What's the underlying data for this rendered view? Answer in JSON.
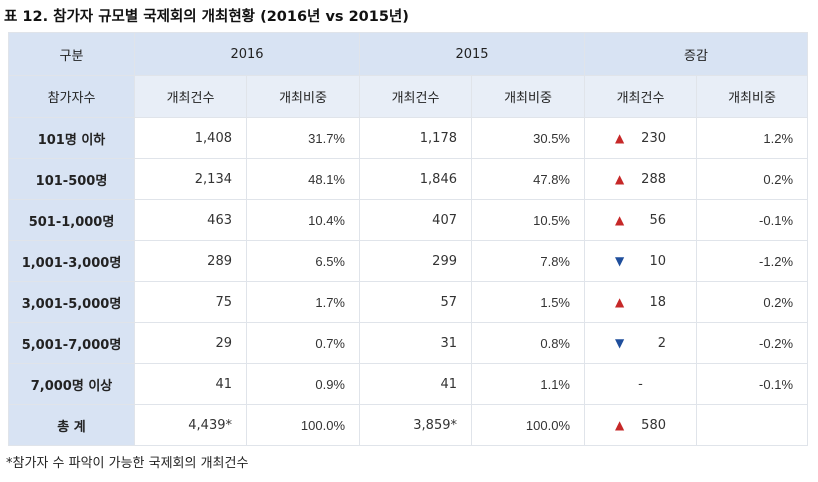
{
  "title": "표 12. 참가자 규모별 국제회의 개최현황 (2016년 vs 2015년)",
  "header": {
    "col_group_label": "구분",
    "groups": [
      "2016",
      "2015",
      "증감"
    ],
    "row_label": "참가자수",
    "sub": [
      "개최건수",
      "개최비중",
      "개최건수",
      "개최비중",
      "개최건수",
      "개최비중"
    ]
  },
  "rows": [
    {
      "label": "101명 이하",
      "c2016": "1,408",
      "p2016": "31.7%",
      "c2015": "1,178",
      "p2015": "30.5%",
      "dir": "up",
      "arrow": "▲",
      "chg": "230",
      "pchg": "1.2%"
    },
    {
      "label": "101-500명",
      "c2016": "2,134",
      "p2016": "48.1%",
      "c2015": "1,846",
      "p2015": "47.8%",
      "dir": "up",
      "arrow": "▲",
      "chg": "288",
      "pchg": "0.2%"
    },
    {
      "label": "501-1,000명",
      "c2016": "463",
      "p2016": "10.4%",
      "c2015": "407",
      "p2015": "10.5%",
      "dir": "up",
      "arrow": "▲",
      "chg": "56",
      "pchg": "-0.1%"
    },
    {
      "label": "1,001-3,000명",
      "c2016": "289",
      "p2016": "6.5%",
      "c2015": "299",
      "p2015": "7.8%",
      "dir": "down",
      "arrow": "▼",
      "chg": "10",
      "pchg": "-1.2%"
    },
    {
      "label": "3,001-5,000명",
      "c2016": "75",
      "p2016": "1.7%",
      "c2015": "57",
      "p2015": "1.5%",
      "dir": "up",
      "arrow": "▲",
      "chg": "18",
      "pchg": "0.2%"
    },
    {
      "label": "5,001-7,000명",
      "c2016": "29",
      "p2016": "0.7%",
      "c2015": "31",
      "p2015": "0.8%",
      "dir": "down",
      "arrow": "▼",
      "chg": "2",
      "pchg": "-0.2%"
    },
    {
      "label": "7,000명 이상",
      "c2016": "41",
      "p2016": "0.9%",
      "c2015": "41",
      "p2015": "1.1%",
      "dir": "none",
      "arrow": "",
      "chg": "-",
      "pchg": "-0.1%"
    }
  ],
  "total": {
    "label": "총 계",
    "c2016": "4,439*",
    "p2016": "100.0%",
    "c2015": "3,859*",
    "p2015": "100.0%",
    "dir": "up",
    "arrow": "▲",
    "chg": "580",
    "pchg": ""
  },
  "footnote": "*참가자 수 파악이 가능한 국제회의 개최건수",
  "colors": {
    "header_bg": "#d8e3f3",
    "subheader_bg": "#e8eef7",
    "up": "#c62828",
    "down": "#1f4e9c"
  }
}
